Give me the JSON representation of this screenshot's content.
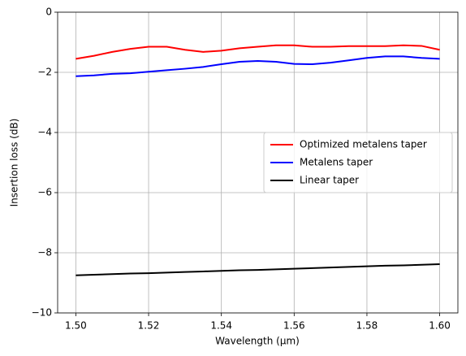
{
  "chart_data": {
    "type": "line",
    "x": [
      1.5,
      1.505,
      1.51,
      1.515,
      1.52,
      1.525,
      1.53,
      1.535,
      1.54,
      1.545,
      1.55,
      1.555,
      1.56,
      1.565,
      1.57,
      1.575,
      1.58,
      1.585,
      1.59,
      1.595,
      1.6
    ],
    "series": [
      {
        "name": "Optimized metalens taper",
        "color": "#ff0000",
        "values": [
          -1.55,
          -1.45,
          -1.32,
          -1.22,
          -1.15,
          -1.15,
          -1.25,
          -1.32,
          -1.28,
          -1.2,
          -1.15,
          -1.1,
          -1.1,
          -1.15,
          -1.15,
          -1.13,
          -1.13,
          -1.13,
          -1.1,
          -1.12,
          -1.25
        ]
      },
      {
        "name": "Metalens taper",
        "color": "#0000ff",
        "values": [
          -2.13,
          -2.1,
          -2.05,
          -2.03,
          -1.98,
          -1.93,
          -1.88,
          -1.82,
          -1.73,
          -1.65,
          -1.62,
          -1.65,
          -1.72,
          -1.73,
          -1.68,
          -1.6,
          -1.52,
          -1.47,
          -1.47,
          -1.52,
          -1.55
        ]
      },
      {
        "name": "Linear taper",
        "color": "#000000",
        "values": [
          -8.75,
          -8.73,
          -8.71,
          -8.69,
          -8.68,
          -8.66,
          -8.64,
          -8.62,
          -8.6,
          -8.58,
          -8.57,
          -8.55,
          -8.53,
          -8.51,
          -8.49,
          -8.47,
          -8.45,
          -8.43,
          -8.42,
          -8.4,
          -8.38
        ]
      }
    ],
    "x_label": "Wavelength (µm)",
    "y_label": "Insertion loss (dB)",
    "xlim": [
      1.495,
      1.605
    ],
    "ylim": [
      -10,
      0
    ],
    "xticks": [
      {
        "value": 1.5,
        "label": "1.50"
      },
      {
        "value": 1.52,
        "label": "1.52"
      },
      {
        "value": 1.54,
        "label": "1.54"
      },
      {
        "value": 1.56,
        "label": "1.56"
      },
      {
        "value": 1.58,
        "label": "1.58"
      },
      {
        "value": 1.6,
        "label": "1.60"
      }
    ],
    "yticks": [
      {
        "value": -10,
        "label": "−10"
      },
      {
        "value": -8,
        "label": "−8"
      },
      {
        "value": -6,
        "label": "−6"
      },
      {
        "value": -4,
        "label": "−4"
      },
      {
        "value": -2,
        "label": "−2"
      },
      0
    ],
    "grid": true,
    "legend": "center right"
  }
}
